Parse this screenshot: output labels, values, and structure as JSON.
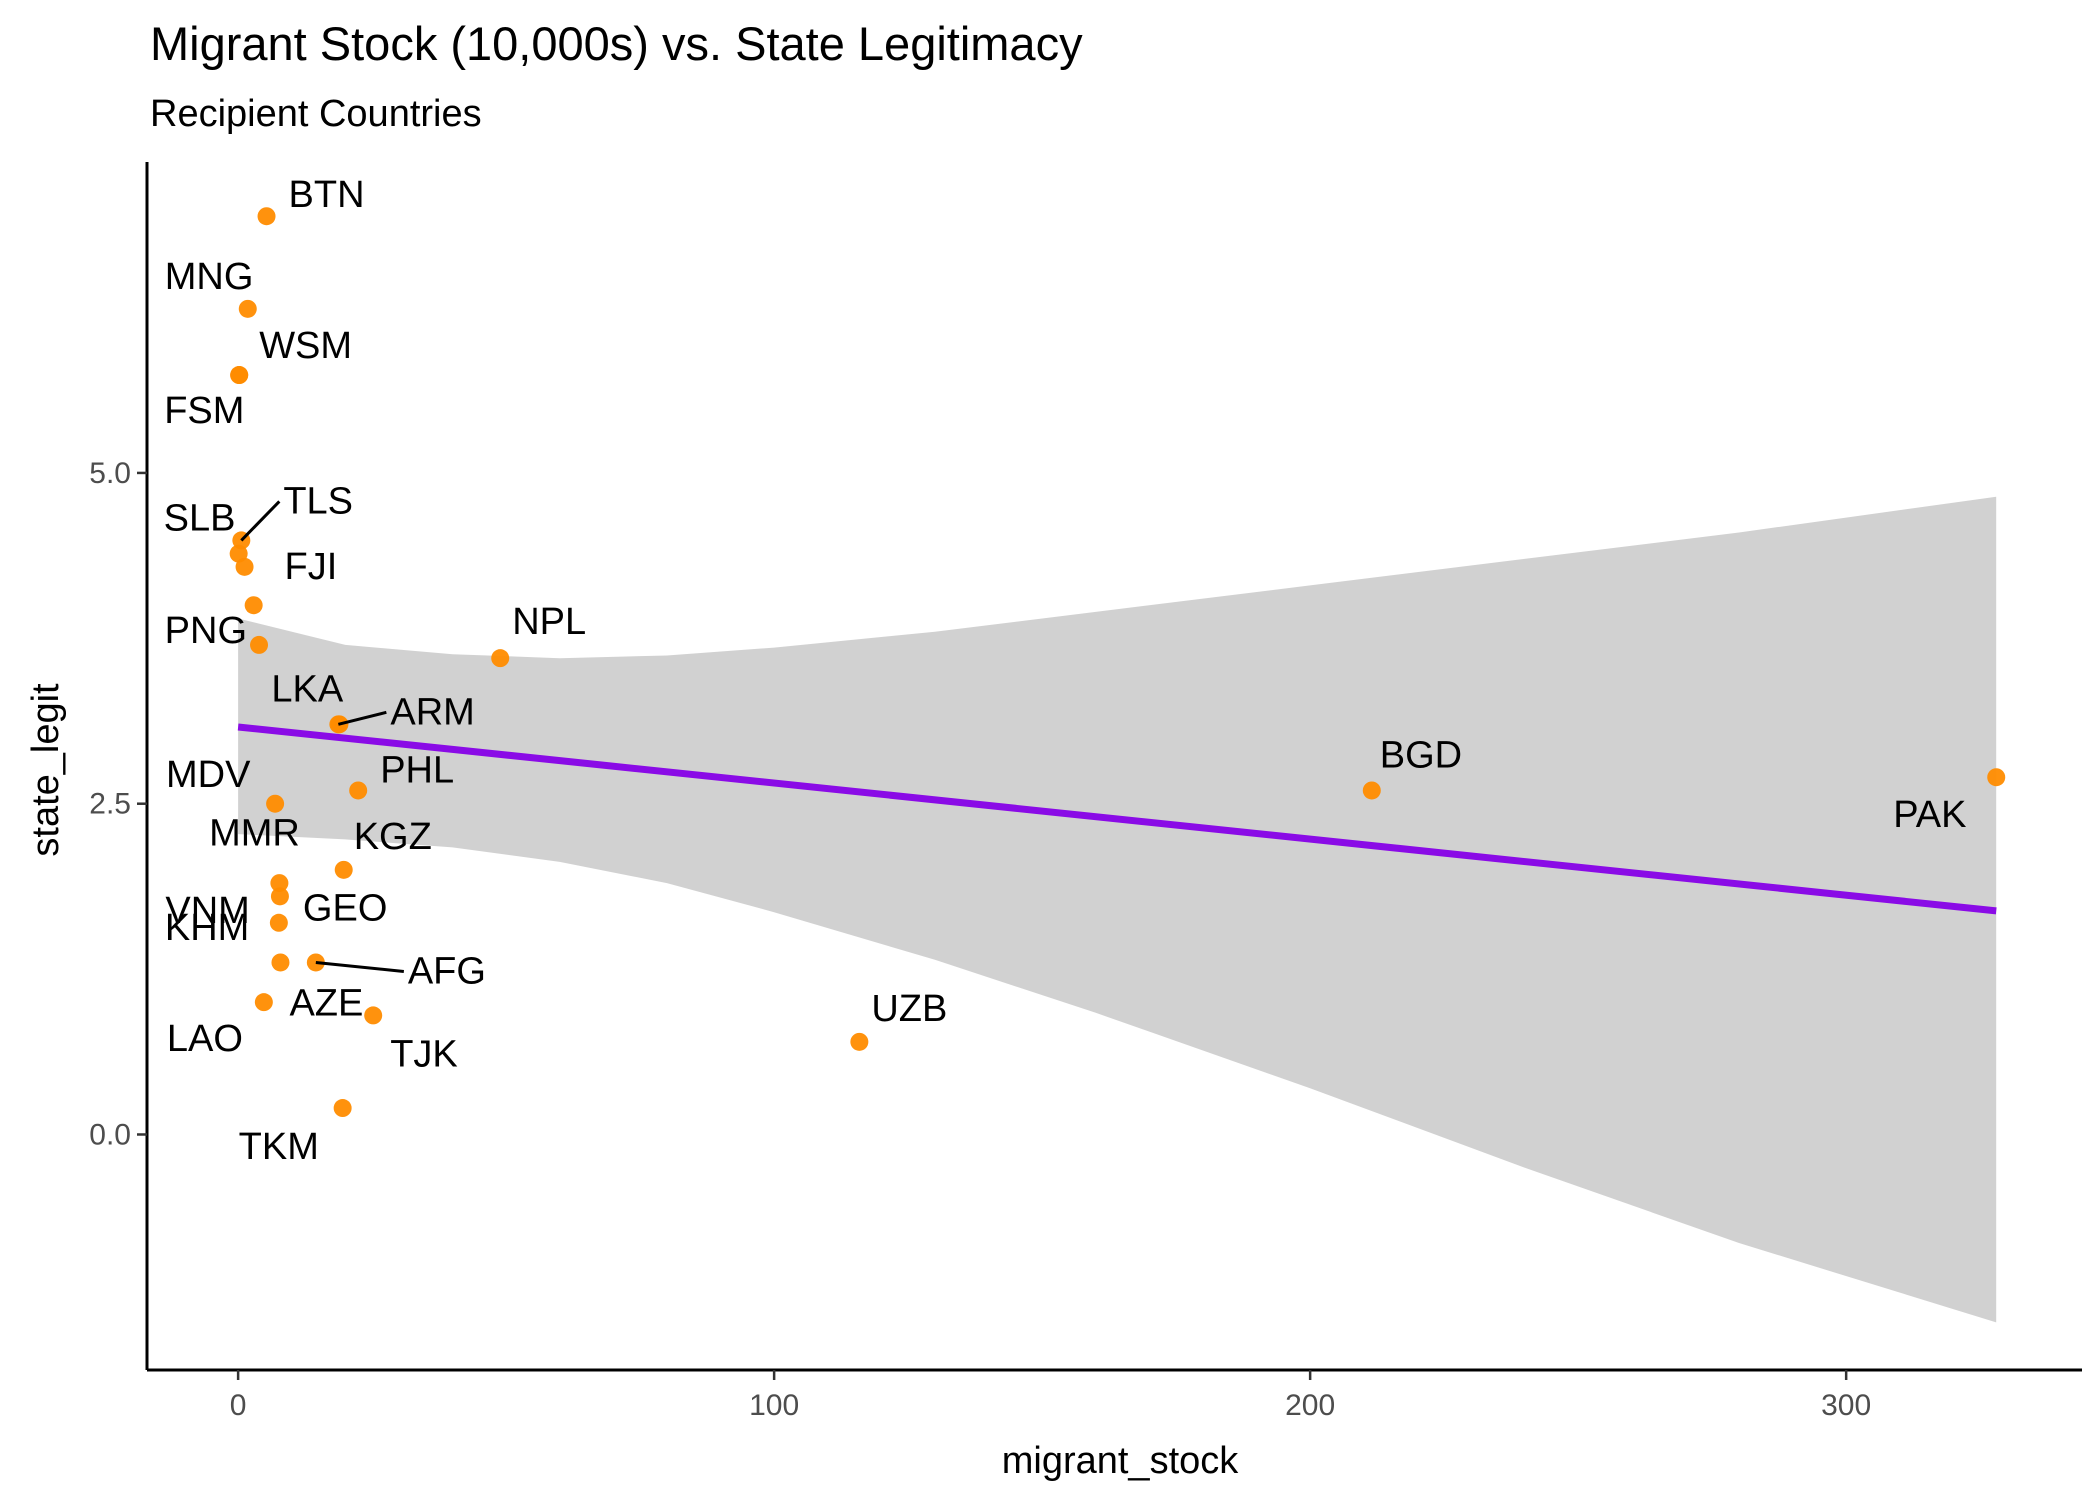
{
  "chart_data": {
    "type": "scatter",
    "title": "Migrant Stock (10,000s) vs. State Legitimacy",
    "subtitle": "Recipient Countries",
    "xlabel": "migrant_stock",
    "ylabel": "state_legit",
    "xlim": [
      -17,
      344
    ],
    "ylim": [
      -1.78,
      7.35
    ],
    "x_ticks": [
      {
        "value": 0,
        "label": "0"
      },
      {
        "value": 100,
        "label": "100"
      },
      {
        "value": 200,
        "label": "200"
      },
      {
        "value": 300,
        "label": "300"
      }
    ],
    "y_ticks": [
      {
        "value": 0,
        "label": "0.0"
      },
      {
        "value": 2.5,
        "label": "2.5"
      },
      {
        "value": 5,
        "label": "5.0"
      }
    ],
    "grid": false,
    "legend": "none",
    "point_color": "#ff8c00",
    "line_color": "#8a0be6",
    "band_color": "#bebebe",
    "points": [
      {
        "label": "BTN",
        "x": 5.3,
        "y": 6.94
      },
      {
        "label": "MNG",
        "x": 1.8,
        "y": 6.24
      },
      {
        "label": "WSM",
        "x": 0.2,
        "y": 5.74
      },
      {
        "label": "FSM",
        "x": 0.2,
        "y": 5.74
      },
      {
        "label": "SLB",
        "x": 0.1,
        "y": 4.39
      },
      {
        "label": "TLS",
        "x": 0.6,
        "y": 4.49
      },
      {
        "label": "FJI",
        "x": 1.2,
        "y": 4.29
      },
      {
        "label": "PNG",
        "x": 2.9,
        "y": 4.0
      },
      {
        "label": "MDV",
        "x": 3.9,
        "y": 3.7
      },
      {
        "label": "NPL",
        "x": 48.9,
        "y": 3.6
      },
      {
        "label": "LKA",
        "x": 18.9,
        "y": 3.1
      },
      {
        "label": "ARM",
        "x": 18.7,
        "y": 3.1
      },
      {
        "label": "PHL",
        "x": 22.4,
        "y": 2.6
      },
      {
        "label": "BGD",
        "x": 211.5,
        "y": 2.6
      },
      {
        "label": "PAK",
        "x": 328.0,
        "y": 2.7
      },
      {
        "label": "MMR",
        "x": 6.9,
        "y": 2.5
      },
      {
        "label": "KGZ",
        "x": 19.7,
        "y": 2.0
      },
      {
        "label": "VNM",
        "x": 7.7,
        "y": 1.9
      },
      {
        "label": "GEO",
        "x": 7.8,
        "y": 1.8
      },
      {
        "label": "KHM",
        "x": 7.6,
        "y": 1.6
      },
      {
        "label": "AFG",
        "x": 14.5,
        "y": 1.3
      },
      {
        "label": "AZE",
        "x": 7.9,
        "y": 1.3
      },
      {
        "label": "LAO",
        "x": 4.8,
        "y": 1.0
      },
      {
        "label": "TJK",
        "x": 25.2,
        "y": 0.9
      },
      {
        "label": "UZB",
        "x": 115.9,
        "y": 0.7
      },
      {
        "label": "TKM",
        "x": 19.5,
        "y": 0.2
      }
    ],
    "trend_line": {
      "x": [
        0,
        328
      ],
      "y": [
        3.08,
        1.69
      ]
    },
    "confidence_band": {
      "x": [
        0,
        20,
        40,
        60,
        80,
        100,
        130,
        160,
        200,
        240,
        280,
        328
      ],
      "upper": [
        3.9,
        3.7,
        3.63,
        3.6,
        3.62,
        3.68,
        3.8,
        3.95,
        4.15,
        4.35,
        4.55,
        4.82
      ],
      "lower": [
        2.27,
        2.23,
        2.17,
        2.06,
        1.9,
        1.68,
        1.32,
        0.92,
        0.35,
        -0.25,
        -0.82,
        -1.42
      ]
    }
  }
}
